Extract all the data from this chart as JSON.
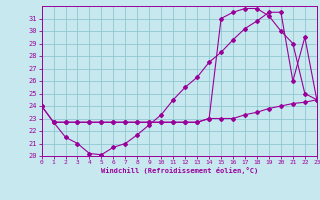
{
  "bg_color": "#c8e8f0",
  "grid_color": "#90c8d0",
  "line_color": "#990099",
  "xlim": [
    0,
    23
  ],
  "ylim": [
    20,
    32
  ],
  "ytick_vals": [
    20,
    21,
    22,
    23,
    24,
    25,
    26,
    27,
    28,
    29,
    30,
    31
  ],
  "xtick_vals": [
    0,
    1,
    2,
    3,
    4,
    5,
    6,
    7,
    8,
    9,
    10,
    11,
    12,
    13,
    14,
    15,
    16,
    17,
    18,
    19,
    20,
    21,
    22,
    23
  ],
  "xlabel": "Windchill (Refroidissement éolien,°C)",
  "line1_x": [
    0,
    1,
    2,
    3,
    4,
    5,
    6,
    7,
    8,
    9,
    10,
    11,
    12,
    13,
    14,
    15,
    16,
    17,
    18,
    19,
    20,
    21,
    22,
    23
  ],
  "line1_y": [
    24.0,
    22.7,
    21.5,
    21.0,
    20.2,
    20.1,
    20.7,
    21.0,
    21.7,
    22.5,
    23.3,
    24.5,
    25.5,
    26.3,
    27.5,
    28.3,
    29.3,
    30.2,
    30.8,
    31.5,
    31.5,
    26.0,
    29.5,
    24.5
  ],
  "line2_x": [
    0,
    1,
    2,
    3,
    4,
    5,
    6,
    7,
    8,
    9,
    10,
    11,
    12,
    13,
    14,
    15,
    16,
    17,
    18,
    19,
    20,
    21,
    22,
    23
  ],
  "line2_y": [
    24.0,
    22.7,
    22.7,
    22.7,
    22.7,
    22.7,
    22.7,
    22.7,
    22.7,
    22.7,
    22.7,
    22.7,
    22.7,
    22.7,
    23.0,
    31.0,
    31.5,
    31.8,
    31.8,
    31.2,
    30.0,
    29.0,
    25.0,
    24.5
  ],
  "line3_x": [
    1,
    2,
    3,
    4,
    5,
    6,
    7,
    8,
    9,
    10,
    11,
    12,
    13,
    14,
    15,
    16,
    17,
    18,
    19,
    20,
    21,
    22,
    23
  ],
  "line3_y": [
    22.7,
    22.7,
    22.7,
    22.7,
    22.7,
    22.7,
    22.7,
    22.7,
    22.7,
    22.7,
    22.7,
    22.7,
    22.7,
    23.0,
    23.0,
    23.0,
    23.3,
    23.5,
    23.8,
    24.0,
    24.2,
    24.3,
    24.5
  ]
}
